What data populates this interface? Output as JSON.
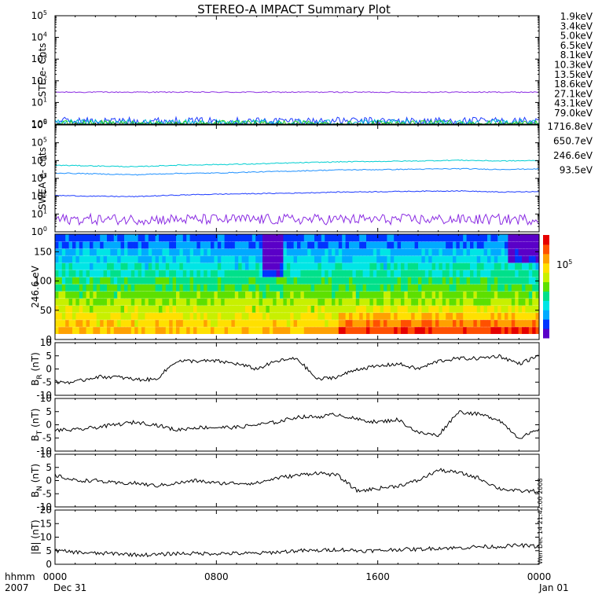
{
  "chart_data": {
    "type": "line",
    "title": "STEREO-A IMPACT Summary Plot",
    "x_axis": {
      "ticks": [
        "0000",
        "0800",
        "1600",
        "0000"
      ],
      "tick_hours": [
        0,
        8,
        16,
        24
      ],
      "left_labels": [
        "hhmm",
        "2007"
      ],
      "date_labels": [
        "Dec 31",
        "Jan 01"
      ]
    },
    "side_annotation": "Wen Dec 14 21:42:00 2008",
    "panels": [
      {
        "id": "ste",
        "type": "line",
        "ylabel": "STE e- Cnts",
        "yscale": "log",
        "ylim": [
          1,
          100000
        ],
        "ytick_exponents": [
          0,
          1,
          2,
          3,
          4,
          5
        ],
        "legend": [
          {
            "label": "1.9keV",
            "color": "#8a2be2"
          },
          {
            "label": "3.4keV",
            "color": "#4b0082"
          },
          {
            "label": "5.0keV",
            "color": "#1e3cff"
          },
          {
            "label": "6.5keV",
            "color": "#1e90ff"
          },
          {
            "label": "8.1keV",
            "color": "#00bcd4"
          },
          {
            "label": "10.3keV",
            "color": "#00c896"
          },
          {
            "label": "13.5keV",
            "color": "#22cc22"
          },
          {
            "label": "18.6keV",
            "color": "#a0e000"
          },
          {
            "label": "27.1keV",
            "color": "#ffd400"
          },
          {
            "label": "43.1keV",
            "color": "#ff8c00"
          },
          {
            "label": "79.0keV",
            "color": "#e03020"
          }
        ],
        "series": [
          {
            "color": "#8a2be2",
            "x": [
              0,
              4,
              8,
              12,
              16,
              20,
              24
            ],
            "y": [
              30,
              30,
              30,
              30,
              30,
              30,
              30
            ]
          },
          {
            "color": "#1e3cff",
            "x": [
              0,
              4,
              8,
              12,
              16,
              20,
              24
            ],
            "y": [
              1.4,
              1.4,
              1.4,
              1.4,
              1.4,
              1.4,
              1.4
            ]
          },
          {
            "color": "#00bcd4",
            "x": [
              0,
              4,
              8,
              12,
              16,
              20,
              24
            ],
            "y": [
              1.1,
              1.1,
              1.1,
              1.1,
              1.1,
              1.1,
              1.1
            ]
          },
          {
            "color": "#22cc22",
            "x": [
              0,
              4,
              8,
              12,
              16,
              20,
              24
            ],
            "y": [
              1.0,
              1.0,
              1.0,
              1.0,
              1.0,
              1.0,
              1.0
            ]
          }
        ]
      },
      {
        "id": "swea",
        "type": "line",
        "ylabel": "SWEA e- cnts",
        "yscale": "log",
        "ylim": [
          1,
          1000000
        ],
        "ytick_exponents": [
          0,
          1,
          2,
          3,
          4,
          5,
          6
        ],
        "legend": [
          {
            "label": "1716.8eV",
            "color": "#8a2be2"
          },
          {
            "label": "650.7eV",
            "color": "#1e3cff"
          },
          {
            "label": "246.6eV",
            "color": "#1e90ff"
          },
          {
            "label": "93.5eV",
            "color": "#00ced1"
          }
        ],
        "series": [
          {
            "color": "#00ced1",
            "x": [
              0,
              2,
              4,
              6,
              8,
              10,
              12,
              14,
              16,
              18,
              20,
              22,
              24
            ],
            "y": [
              5500,
              5000,
              4500,
              5500,
              6000,
              6500,
              7500,
              8500,
              9000,
              9500,
              10500,
              9500,
              10000
            ]
          },
          {
            "color": "#1e90ff",
            "x": [
              0,
              2,
              4,
              6,
              8,
              10,
              12,
              14,
              16,
              18,
              20,
              22,
              24
            ],
            "y": [
              2000,
              1800,
              1600,
              1900,
              2000,
              2300,
              2600,
              3000,
              3100,
              3300,
              3500,
              3200,
              3400
            ]
          },
          {
            "color": "#1e3cff",
            "x": [
              0,
              2,
              4,
              6,
              8,
              10,
              12,
              14,
              16,
              18,
              20,
              22,
              24
            ],
            "y": [
              110,
              100,
              95,
              115,
              130,
              140,
              150,
              170,
              180,
              190,
              200,
              170,
              180
            ]
          },
          {
            "color": "#8a2be2",
            "x": [
              0,
              4,
              8,
              12,
              16,
              20,
              24
            ],
            "y": [
              5,
              5,
              5,
              5,
              5,
              5,
              5
            ]
          }
        ]
      },
      {
        "id": "pad",
        "type": "heatmap",
        "ylabel": "246.6 eV",
        "ylim": [
          0,
          180
        ],
        "yticks": [
          0,
          50,
          100,
          150
        ],
        "colorbar_label": "10",
        "colorbar_exponent": "5",
        "colormap": [
          "#5a00c8",
          "#0033ff",
          "#00aaff",
          "#00e5e5",
          "#00e08a",
          "#5de000",
          "#c8f000",
          "#ffe000",
          "#ffa000",
          "#ff5000",
          "#e60000"
        ]
      },
      {
        "id": "br",
        "type": "line",
        "ylabel": "B",
        "ylabel_sub": "R",
        "ylabel_unit": "(nT)",
        "ylim": [
          -10,
          10
        ],
        "yticks": [
          10,
          5,
          0,
          -5,
          -10
        ],
        "series": [
          {
            "color": "#000000",
            "x": [
              0,
              1,
              2,
              3,
              4,
              5,
              6,
              7,
              8,
              9,
              10,
              11,
              12,
              13,
              14,
              15,
              16,
              17,
              18,
              19,
              20,
              21,
              22,
              23,
              24
            ],
            "y": [
              -5,
              -5,
              -3,
              -3,
              -4,
              -4,
              3,
              3,
              3,
              2,
              0,
              3,
              4,
              -4,
              -3,
              0,
              1,
              2,
              0,
              3,
              4,
              4,
              5,
              2,
              5
            ]
          }
        ]
      },
      {
        "id": "bt",
        "type": "line",
        "ylabel": "B",
        "ylabel_sub": "T",
        "ylabel_unit": "(nT)",
        "ylim": [
          -10,
          10
        ],
        "yticks": [
          10,
          5,
          0,
          -5,
          -10
        ],
        "series": [
          {
            "color": "#000000",
            "x": [
              0,
              1,
              2,
              3,
              4,
              5,
              6,
              7,
              8,
              9,
              10,
              11,
              12,
              13,
              14,
              15,
              16,
              17,
              18,
              19,
              20,
              21,
              22,
              23,
              24
            ],
            "y": [
              -2,
              -2,
              -1,
              0,
              1,
              0,
              -2,
              -1,
              -1,
              -1,
              0,
              1,
              3,
              3,
              4,
              2,
              1,
              2,
              -3,
              -4,
              5,
              4,
              2,
              -5,
              -2
            ]
          }
        ]
      },
      {
        "id": "bn",
        "type": "line",
        "ylabel": "B",
        "ylabel_sub": "N",
        "ylabel_unit": "(nT)",
        "ylim": [
          -10,
          10
        ],
        "yticks": [
          10,
          5,
          0,
          -5,
          -10
        ],
        "series": [
          {
            "color": "#000000",
            "x": [
              0,
              1,
              2,
              3,
              4,
              5,
              6,
              7,
              8,
              9,
              10,
              11,
              12,
              13,
              14,
              15,
              16,
              17,
              18,
              19,
              20,
              21,
              22,
              23,
              24
            ],
            "y": [
              2,
              0,
              0,
              -1,
              -1,
              -2,
              -1,
              0,
              -1,
              -1,
              -1,
              1,
              2,
              3,
              2,
              -4,
              -3,
              -2,
              0,
              4,
              3,
              1,
              -3,
              -4,
              -4
            ]
          }
        ]
      },
      {
        "id": "bmag",
        "type": "line",
        "ylabel": "|B| (nT)",
        "ylim": [
          0,
          20
        ],
        "yticks": [
          20,
          15,
          10,
          5,
          0
        ],
        "series": [
          {
            "color": "#000000",
            "x": [
              0,
              1,
              2,
              3,
              4,
              5,
              6,
              7,
              8,
              9,
              10,
              11,
              12,
              13,
              14,
              15,
              16,
              17,
              18,
              19,
              20,
              21,
              22,
              23,
              24
            ],
            "y": [
              5,
              4.5,
              4,
              4,
              3.5,
              3.5,
              4,
              4,
              4,
              4,
              4,
              4.5,
              5,
              5,
              5.5,
              5,
              5,
              5.5,
              5.5,
              6,
              6,
              6.5,
              6.5,
              7,
              6.5
            ]
          }
        ]
      }
    ]
  }
}
